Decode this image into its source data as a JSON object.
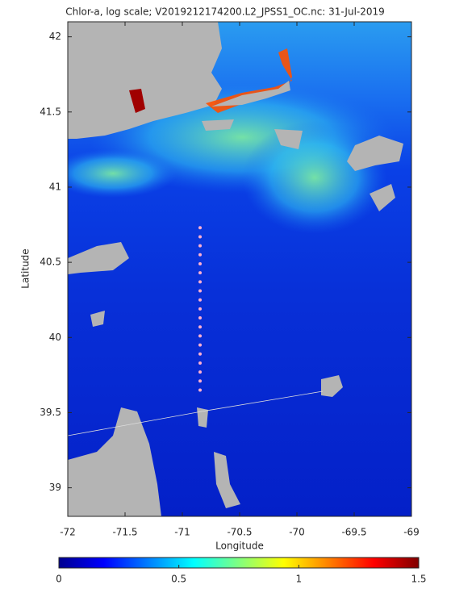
{
  "chart_data": {
    "type": "map",
    "title": "Chlor-a, log scale; V2019212174200.L2_JPSS1_OC.nc: 31-Jul-2019",
    "x_label": "Longitude",
    "y_label": "Latitude",
    "xlim": [
      -72,
      -69
    ],
    "ylim": [
      38.81,
      42.1
    ],
    "xticks": [
      -72,
      -71.5,
      -71,
      -70.5,
      -70,
      -69.5,
      -69
    ],
    "yticks": [
      39,
      39.5,
      40,
      40.5,
      41,
      41.5,
      42
    ],
    "x": [
      -70.845,
      -70.845,
      -70.845,
      -70.845,
      -70.845,
      -70.845,
      -70.845,
      -70.845,
      -70.845,
      -70.845,
      -70.845,
      -70.845,
      -70.845,
      -70.845,
      -70.845,
      -70.845,
      -70.845,
      -70.845,
      -70.845
    ],
    "y": [
      40.73,
      40.67,
      40.61,
      40.55,
      40.49,
      40.43,
      40.37,
      40.31,
      40.25,
      40.19,
      40.13,
      40.07,
      40.01,
      39.95,
      39.89,
      39.83,
      39.77,
      39.71,
      39.65
    ],
    "marker_color": "#ffb0d0",
    "colorbar": {
      "clim": [
        0,
        1.5
      ],
      "ticks": [
        0,
        0.5,
        1,
        1.5
      ],
      "colormap": [
        "#00008f",
        "#0000ff",
        "#0080ff",
        "#00ffff",
        "#80ff80",
        "#ffff00",
        "#ff8000",
        "#ff0000",
        "#800000"
      ]
    }
  }
}
